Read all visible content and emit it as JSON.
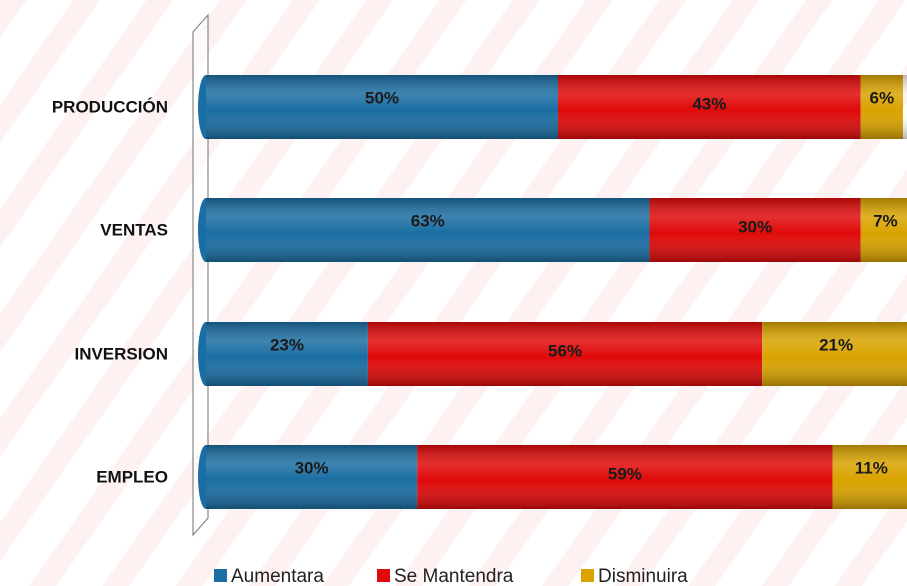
{
  "chart_data": {
    "type": "bar",
    "orientation": "horizontal",
    "stacked": true,
    "categories": [
      "PRODUCCIÓN",
      "VENTAS",
      "INVERSION",
      "EMPLEO"
    ],
    "series": [
      {
        "name": "Aumentara",
        "color": "#1b6ea3",
        "values": [
          50,
          63,
          23,
          30
        ],
        "value_labels": [
          "50%",
          "63%",
          "23%",
          "30%"
        ]
      },
      {
        "name": "Se Mantendra",
        "color": "#e00a0a",
        "values": [
          43,
          30,
          56,
          59
        ],
        "value_labels": [
          "43%",
          "30%",
          "56%",
          "59%"
        ]
      },
      {
        "name": "Disminuira",
        "color": "#d9a300",
        "values": [
          6,
          7,
          21,
          11
        ],
        "value_labels": [
          "6%",
          "7%",
          "21%",
          "11%"
        ]
      }
    ],
    "xlim": [
      0,
      100
    ],
    "legend": "bottom"
  }
}
